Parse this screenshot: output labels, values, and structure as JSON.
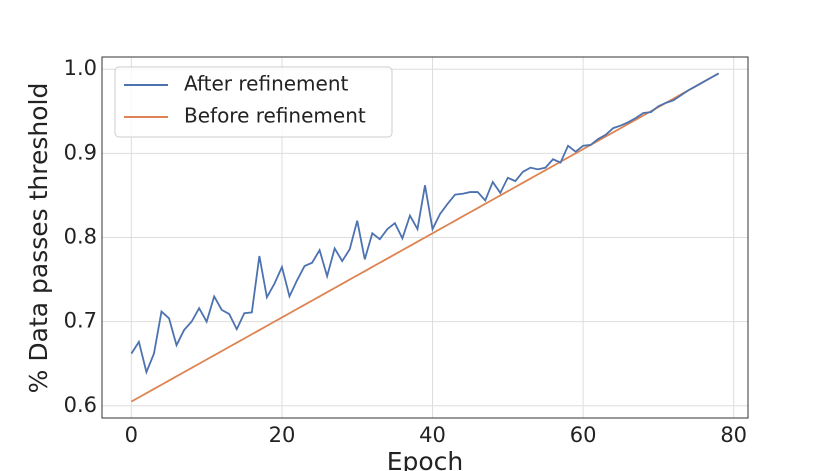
{
  "chart_data": {
    "type": "line",
    "xlabel": "Epoch",
    "ylabel": "% Data passes threshold",
    "x": [
      0,
      1,
      2,
      3,
      4,
      5,
      6,
      7,
      8,
      9,
      10,
      11,
      12,
      13,
      14,
      15,
      16,
      17,
      18,
      19,
      20,
      21,
      22,
      23,
      24,
      25,
      26,
      27,
      28,
      29,
      30,
      31,
      32,
      33,
      34,
      35,
      36,
      37,
      38,
      39,
      40,
      41,
      42,
      43,
      44,
      45,
      46,
      47,
      48,
      49,
      50,
      51,
      52,
      53,
      54,
      55,
      56,
      57,
      58,
      59,
      60,
      61,
      62,
      63,
      64,
      65,
      66,
      67,
      68,
      69,
      70,
      71,
      72,
      73,
      74,
      75,
      76,
      77,
      78
    ],
    "series": [
      {
        "name": "After refinement",
        "color": "#4c72b0",
        "values": [
          0.662,
          0.676,
          0.64,
          0.662,
          0.712,
          0.704,
          0.672,
          0.69,
          0.7,
          0.716,
          0.7,
          0.73,
          0.714,
          0.709,
          0.691,
          0.71,
          0.711,
          0.778,
          0.729,
          0.745,
          0.765,
          0.73,
          0.749,
          0.766,
          0.77,
          0.785,
          0.754,
          0.787,
          0.772,
          0.786,
          0.82,
          0.774,
          0.805,
          0.798,
          0.81,
          0.817,
          0.799,
          0.826,
          0.81,
          0.862,
          0.81,
          0.828,
          0.84,
          0.851,
          0.852,
          0.854,
          0.854,
          0.844,
          0.866,
          0.853,
          0.871,
          0.867,
          0.878,
          0.883,
          0.881,
          0.883,
          0.893,
          0.889,
          0.909,
          0.902,
          0.909,
          0.91,
          0.917,
          0.922,
          0.93,
          0.933,
          0.937,
          0.942,
          0.948,
          0.949,
          0.956,
          0.96,
          0.963,
          0.969,
          0.975,
          0.98,
          0.985,
          0.99,
          0.995
        ]
      },
      {
        "name": "Before refinement",
        "color": "#dd8452",
        "values": [
          0.605,
          0.61,
          0.615,
          0.62,
          0.625,
          0.63,
          0.635,
          0.64,
          0.645,
          0.65,
          0.655,
          0.66,
          0.665,
          0.67,
          0.675,
          0.68,
          0.685,
          0.69,
          0.695,
          0.7,
          0.705,
          0.71,
          0.715,
          0.72,
          0.725,
          0.73,
          0.735,
          0.74,
          0.745,
          0.75,
          0.755,
          0.76,
          0.765,
          0.77,
          0.775,
          0.78,
          0.785,
          0.79,
          0.795,
          0.8,
          0.805,
          0.81,
          0.815,
          0.82,
          0.825,
          0.83,
          0.835,
          0.84,
          0.845,
          0.85,
          0.855,
          0.86,
          0.865,
          0.87,
          0.875,
          0.88,
          0.885,
          0.89,
          0.895,
          0.9,
          0.905,
          0.91,
          0.915,
          0.92,
          0.925,
          0.93,
          0.935,
          0.94,
          0.945,
          0.95,
          0.955,
          0.96,
          0.965,
          0.97,
          0.975,
          0.98,
          0.985,
          0.99,
          0.995
        ]
      }
    ],
    "xlim": [
      -3.9,
      81.9
    ],
    "ylim": [
      0.5855,
      1.0145
    ],
    "xticks": [
      0,
      20,
      40,
      60,
      80
    ],
    "yticks": [
      0.6,
      0.7,
      0.8,
      0.9,
      {
        "value": 1.0,
        "label": "1.0"
      }
    ],
    "grid": true,
    "legend": "upper left"
  }
}
